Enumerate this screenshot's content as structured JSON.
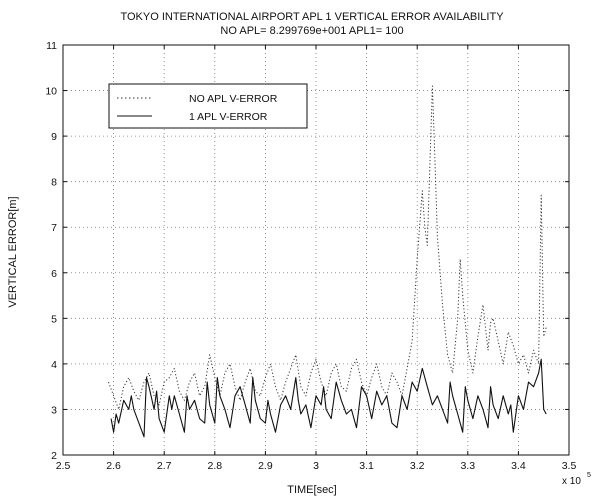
{
  "chart_data": {
    "type": "line",
    "title": "TOKYO INTERNATIONAL AIRPORT APL 1 VERTICAL ERROR AVAILABILITY",
    "subtitle": "NO APL= 8.299769e+001  APL1= 100",
    "xlabel": "TIME[sec]",
    "ylabel": "VERTICAL ERROR[m]",
    "x_multiplier": "x 10",
    "x_multiplier_exp": "5",
    "xlim": [
      2.5,
      3.5
    ],
    "ylim": [
      2,
      11
    ],
    "xticks": [
      2.5,
      2.6,
      2.7,
      2.8,
      2.9,
      3.0,
      3.1,
      3.2,
      3.3,
      3.4,
      3.5
    ],
    "xtick_labels": [
      "2.5",
      "2.6",
      "2.7",
      "2.8",
      "2.9",
      "3",
      "3.1",
      "3.2",
      "3.3",
      "3.4",
      "3.5"
    ],
    "yticks": [
      2,
      3,
      4,
      5,
      6,
      7,
      8,
      9,
      10,
      11
    ],
    "grid": true,
    "legend_position": "upper-left",
    "series": [
      {
        "name": "NO APL V-ERROR",
        "style": "dotted",
        "color": "#333333",
        "points": [
          [
            2.59,
            3.6
          ],
          [
            2.6,
            3.3
          ],
          [
            2.61,
            3.0
          ],
          [
            2.62,
            3.5
          ],
          [
            2.63,
            3.7
          ],
          [
            2.64,
            3.4
          ],
          [
            2.65,
            3.2
          ],
          [
            2.66,
            3.6
          ],
          [
            2.67,
            3.8
          ],
          [
            2.68,
            3.3
          ],
          [
            2.69,
            3.1
          ],
          [
            2.7,
            3.6
          ],
          [
            2.71,
            3.7
          ],
          [
            2.72,
            3.9
          ],
          [
            2.73,
            3.4
          ],
          [
            2.74,
            3.2
          ],
          [
            2.75,
            3.6
          ],
          [
            2.76,
            3.8
          ],
          [
            2.77,
            3.3
          ],
          [
            2.78,
            3.5
          ],
          [
            2.79,
            4.2
          ],
          [
            2.8,
            3.7
          ],
          [
            2.81,
            3.3
          ],
          [
            2.82,
            3.8
          ],
          [
            2.83,
            4.0
          ],
          [
            2.84,
            3.5
          ],
          [
            2.85,
            3.2
          ],
          [
            2.86,
            3.6
          ],
          [
            2.87,
            3.9
          ],
          [
            2.88,
            3.4
          ],
          [
            2.89,
            3.3
          ],
          [
            2.9,
            3.7
          ],
          [
            2.91,
            4.0
          ],
          [
            2.92,
            3.5
          ],
          [
            2.93,
            3.2
          ],
          [
            2.94,
            3.6
          ],
          [
            2.95,
            3.9
          ],
          [
            2.96,
            4.2
          ],
          [
            2.97,
            3.5
          ],
          [
            2.98,
            3.3
          ],
          [
            2.99,
            3.8
          ],
          [
            3.0,
            4.1
          ],
          [
            3.01,
            3.6
          ],
          [
            3.02,
            3.3
          ],
          [
            3.03,
            3.8
          ],
          [
            3.04,
            4.0
          ],
          [
            3.05,
            3.5
          ],
          [
            3.06,
            3.4
          ],
          [
            3.07,
            3.9
          ],
          [
            3.08,
            4.1
          ],
          [
            3.09,
            3.6
          ],
          [
            3.1,
            3.3
          ],
          [
            3.11,
            3.7
          ],
          [
            3.12,
            4.0
          ],
          [
            3.13,
            3.5
          ],
          [
            3.14,
            3.3
          ],
          [
            3.15,
            3.8
          ],
          [
            3.16,
            3.6
          ],
          [
            3.17,
            3.3
          ],
          [
            3.18,
            3.9
          ],
          [
            3.19,
            4.5
          ],
          [
            3.2,
            6.3
          ],
          [
            3.21,
            7.8
          ],
          [
            3.215,
            7.0
          ],
          [
            3.22,
            6.6
          ],
          [
            3.23,
            10.1
          ],
          [
            3.235,
            8.5
          ],
          [
            3.24,
            6.8
          ],
          [
            3.25,
            5.3
          ],
          [
            3.26,
            4.2
          ],
          [
            3.27,
            3.8
          ],
          [
            3.28,
            5.0
          ],
          [
            3.285,
            6.3
          ],
          [
            3.29,
            5.5
          ],
          [
            3.3,
            4.3
          ],
          [
            3.31,
            3.8
          ],
          [
            3.32,
            4.6
          ],
          [
            3.33,
            5.3
          ],
          [
            3.34,
            4.3
          ],
          [
            3.345,
            4.9
          ],
          [
            3.35,
            5.0
          ],
          [
            3.36,
            4.5
          ],
          [
            3.37,
            4.0
          ],
          [
            3.38,
            4.7
          ],
          [
            3.39,
            4.4
          ],
          [
            3.4,
            4.0
          ],
          [
            3.41,
            4.2
          ],
          [
            3.42,
            3.8
          ],
          [
            3.43,
            4.3
          ],
          [
            3.44,
            4.0
          ],
          [
            3.445,
            7.7
          ],
          [
            3.45,
            4.6
          ],
          [
            3.455,
            4.8
          ]
        ]
      },
      {
        "name": "1 APL V-ERROR",
        "style": "solid",
        "color": "#111111",
        "points": [
          [
            2.595,
            2.8
          ],
          [
            2.6,
            2.5
          ],
          [
            2.605,
            2.9
          ],
          [
            2.61,
            2.7
          ],
          [
            2.62,
            3.2
          ],
          [
            2.63,
            3.0
          ],
          [
            2.635,
            3.3
          ],
          [
            2.64,
            3.0
          ],
          [
            2.65,
            2.7
          ],
          [
            2.66,
            2.4
          ],
          [
            2.665,
            3.7
          ],
          [
            2.67,
            3.5
          ],
          [
            2.68,
            3.0
          ],
          [
            2.685,
            3.4
          ],
          [
            2.69,
            2.8
          ],
          [
            2.7,
            2.5
          ],
          [
            2.71,
            3.3
          ],
          [
            2.715,
            3.0
          ],
          [
            2.72,
            3.3
          ],
          [
            2.73,
            2.9
          ],
          [
            2.74,
            2.5
          ],
          [
            2.745,
            3.3
          ],
          [
            2.75,
            3.0
          ],
          [
            2.76,
            3.2
          ],
          [
            2.77,
            2.8
          ],
          [
            2.78,
            2.7
          ],
          [
            2.785,
            3.6
          ],
          [
            2.79,
            3.1
          ],
          [
            2.8,
            2.7
          ],
          [
            2.805,
            3.7
          ],
          [
            2.81,
            3.3
          ],
          [
            2.82,
            3.0
          ],
          [
            2.83,
            2.6
          ],
          [
            2.84,
            3.3
          ],
          [
            2.85,
            3.5
          ],
          [
            2.86,
            3.1
          ],
          [
            2.87,
            2.7
          ],
          [
            2.875,
            3.7
          ],
          [
            2.88,
            3.2
          ],
          [
            2.89,
            2.8
          ],
          [
            2.9,
            2.7
          ],
          [
            2.905,
            3.2
          ],
          [
            2.91,
            2.9
          ],
          [
            2.92,
            2.5
          ],
          [
            2.93,
            3.1
          ],
          [
            2.94,
            3.3
          ],
          [
            2.95,
            3.0
          ],
          [
            2.96,
            3.7
          ],
          [
            2.965,
            3.2
          ],
          [
            2.97,
            2.9
          ],
          [
            2.98,
            3.1
          ],
          [
            2.99,
            2.6
          ],
          [
            3.0,
            3.3
          ],
          [
            3.01,
            3.1
          ],
          [
            3.015,
            3.5
          ],
          [
            3.02,
            3.0
          ],
          [
            3.03,
            2.8
          ],
          [
            3.04,
            3.6
          ],
          [
            3.05,
            3.2
          ],
          [
            3.06,
            2.9
          ],
          [
            3.07,
            3.0
          ],
          [
            3.08,
            2.6
          ],
          [
            3.09,
            3.5
          ],
          [
            3.1,
            3.3
          ],
          [
            3.11,
            2.8
          ],
          [
            3.12,
            3.4
          ],
          [
            3.13,
            3.1
          ],
          [
            3.14,
            3.3
          ],
          [
            3.15,
            2.7
          ],
          [
            3.16,
            2.6
          ],
          [
            3.17,
            3.3
          ],
          [
            3.18,
            3.0
          ],
          [
            3.19,
            3.6
          ],
          [
            3.2,
            3.4
          ],
          [
            3.21,
            3.9
          ],
          [
            3.22,
            3.5
          ],
          [
            3.23,
            3.1
          ],
          [
            3.24,
            3.3
          ],
          [
            3.25,
            3.0
          ],
          [
            3.26,
            2.7
          ],
          [
            3.265,
            3.6
          ],
          [
            3.27,
            3.3
          ],
          [
            3.28,
            2.9
          ],
          [
            3.29,
            2.5
          ],
          [
            3.295,
            3.5
          ],
          [
            3.3,
            3.2
          ],
          [
            3.31,
            2.8
          ],
          [
            3.32,
            3.3
          ],
          [
            3.33,
            3.0
          ],
          [
            3.34,
            2.6
          ],
          [
            3.345,
            3.5
          ],
          [
            3.35,
            3.1
          ],
          [
            3.36,
            2.8
          ],
          [
            3.37,
            3.3
          ],
          [
            3.38,
            2.9
          ],
          [
            3.385,
            3.1
          ],
          [
            3.39,
            2.5
          ],
          [
            3.4,
            3.3
          ],
          [
            3.41,
            3.0
          ],
          [
            3.42,
            3.6
          ],
          [
            3.43,
            3.5
          ],
          [
            3.44,
            3.8
          ],
          [
            3.445,
            4.1
          ],
          [
            3.45,
            3.0
          ],
          [
            3.455,
            2.9
          ]
        ]
      }
    ]
  }
}
